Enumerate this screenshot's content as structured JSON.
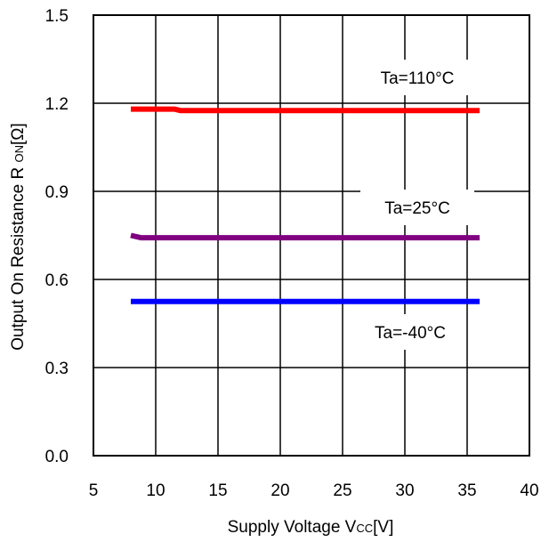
{
  "chart_data": {
    "type": "line",
    "title": "",
    "xlabel": {
      "main": "Supply Voltage V",
      "sub": "CC",
      "suffix": "[V]"
    },
    "ylabel": {
      "main": "Output On Resistance R ",
      "sub": "ON",
      "suffix": "[Ω]"
    },
    "xlim": [
      5,
      40
    ],
    "ylim": [
      0.0,
      1.5
    ],
    "xticks": [
      5,
      10,
      15,
      20,
      25,
      30,
      35,
      40
    ],
    "xtick_labels": [
      "5",
      "10",
      "15",
      "20",
      "25",
      "30",
      "35",
      "40"
    ],
    "yticks": [
      0.0,
      0.3,
      0.6,
      0.9,
      1.2,
      1.5
    ],
    "ytick_labels": [
      "0.0",
      "0.3",
      "0.6",
      "0.9",
      "1.2",
      "1.5"
    ],
    "grid": true,
    "series": [
      {
        "name": "Ta=110°C",
        "color": "#ff0000",
        "x": [
          8,
          10,
          11.5,
          12,
          15,
          20,
          25,
          30,
          36
        ],
        "y": [
          1.18,
          1.18,
          1.18,
          1.175,
          1.175,
          1.175,
          1.175,
          1.175,
          1.175
        ]
      },
      {
        "name": "Ta=25°C",
        "color": "#800080",
        "x": [
          8,
          8.8,
          10,
          15,
          20,
          25,
          30,
          36
        ],
        "y": [
          0.75,
          0.742,
          0.742,
          0.742,
          0.742,
          0.742,
          0.742,
          0.742
        ]
      },
      {
        "name": "Ta=-40°C",
        "color": "#0000ff",
        "x": [
          8,
          10,
          15,
          20,
          25,
          30,
          36
        ],
        "y": [
          0.525,
          0.525,
          0.525,
          0.525,
          0.525,
          0.525,
          0.525
        ]
      }
    ],
    "annotations": [
      {
        "text": "Ta=110°C",
        "series": 0
      },
      {
        "text": "Ta=25°C",
        "series": 1
      },
      {
        "text": "Ta=-40°C",
        "series": 2
      }
    ]
  }
}
